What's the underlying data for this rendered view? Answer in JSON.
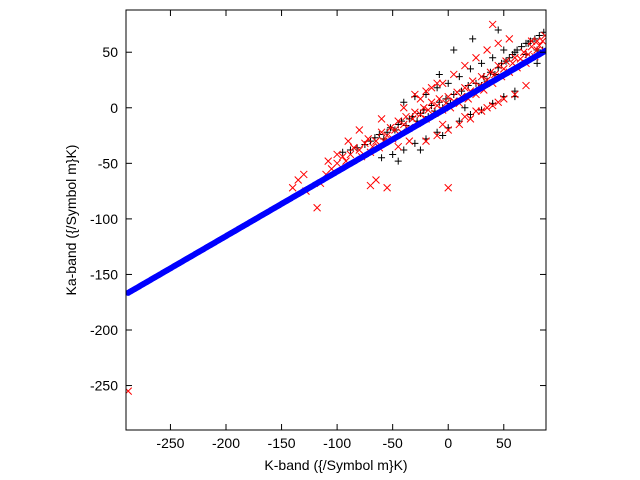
{
  "chart_data": {
    "type": "scatter",
    "title": "",
    "xlabel": "K-band ({/Symbol m}K)",
    "ylabel": "Ka-band ({/Symbol m}K)",
    "xlim": [
      -290,
      88
    ],
    "ylim": [
      -290,
      88
    ],
    "grid": false,
    "legend": "none",
    "xticks": [
      -250,
      -200,
      -150,
      -100,
      -50,
      0,
      50
    ],
    "yticks": [
      -250,
      -200,
      -150,
      -100,
      -50,
      0,
      50
    ],
    "xtick_labels": [
      "-250",
      "-200",
      "-150",
      "-100",
      "-50",
      "0",
      "50"
    ],
    "ytick_labels": [
      "-250",
      "-200",
      "-150",
      "-100",
      "-50",
      "0",
      "50"
    ],
    "series": [
      {
        "marker": "plus",
        "color": "#000000",
        "points": [
          [
            -95,
            -40
          ],
          [
            -88,
            -38
          ],
          [
            -82,
            -36
          ],
          [
            -75,
            -33
          ],
          [
            -70,
            -30
          ],
          [
            -66,
            -27
          ],
          [
            -62,
            -24
          ],
          [
            -58,
            -28
          ],
          [
            -55,
            -22
          ],
          [
            -52,
            -18
          ],
          [
            -48,
            -20
          ],
          [
            -45,
            -15
          ],
          [
            -42,
            -12
          ],
          [
            -38,
            -16
          ],
          [
            -35,
            -10
          ],
          [
            -32,
            -8
          ],
          [
            -28,
            -12
          ],
          [
            -25,
            -5
          ],
          [
            -22,
            -2
          ],
          [
            -18,
            -8
          ],
          [
            -15,
            2
          ],
          [
            -12,
            -3
          ],
          [
            -8,
            5
          ],
          [
            -5,
            0
          ],
          [
            -2,
            8
          ],
          [
            2,
            4
          ],
          [
            5,
            12
          ],
          [
            8,
            6
          ],
          [
            12,
            15
          ],
          [
            15,
            10
          ],
          [
            18,
            20
          ],
          [
            22,
            14
          ],
          [
            25,
            22
          ],
          [
            28,
            18
          ],
          [
            32,
            28
          ],
          [
            35,
            24
          ],
          [
            38,
            32
          ],
          [
            42,
            30
          ],
          [
            45,
            36
          ],
          [
            48,
            40
          ],
          [
            52,
            42
          ],
          [
            55,
            45
          ],
          [
            58,
            48
          ],
          [
            62,
            52
          ],
          [
            66,
            55
          ],
          [
            70,
            58
          ],
          [
            74,
            60
          ],
          [
            78,
            62
          ],
          [
            82,
            65
          ],
          [
            86,
            68
          ],
          [
            -40,
            5
          ],
          [
            -30,
            10
          ],
          [
            -20,
            12
          ],
          [
            -10,
            18
          ],
          [
            0,
            22
          ],
          [
            10,
            28
          ],
          [
            20,
            35
          ],
          [
            30,
            40
          ],
          [
            40,
            45
          ],
          [
            50,
            52
          ],
          [
            60,
            50
          ],
          [
            70,
            48
          ],
          [
            80,
            52
          ],
          [
            -60,
            -45
          ],
          [
            -50,
            -42
          ],
          [
            -40,
            -38
          ],
          [
            -30,
            -32
          ],
          [
            -20,
            -28
          ],
          [
            -10,
            -22
          ],
          [
            0,
            -18
          ],
          [
            10,
            -12
          ],
          [
            20,
            -6
          ],
          [
            30,
            -2
          ],
          [
            40,
            4
          ],
          [
            50,
            10
          ],
          [
            60,
            15
          ],
          [
            5,
            52
          ],
          [
            22,
            62
          ],
          [
            45,
            70
          ],
          [
            72,
            58
          ],
          [
            85,
            52
          ],
          [
            80,
            40
          ],
          [
            60,
            10
          ],
          [
            -5,
            -25
          ],
          [
            -25,
            -38
          ],
          [
            -45,
            -48
          ],
          [
            30,
            20
          ],
          [
            15,
            0
          ],
          [
            -8,
            30
          ]
        ]
      },
      {
        "marker": "cross",
        "color": "#ff0000",
        "points": [
          [
            -288,
            -255
          ],
          [
            -118,
            -90
          ],
          [
            -115,
            -68
          ],
          [
            -110,
            -60
          ],
          [
            -105,
            -55
          ],
          [
            -140,
            -72
          ],
          [
            -135,
            -65
          ],
          [
            -130,
            -60
          ],
          [
            -128,
            -75
          ],
          [
            -100,
            -50
          ],
          [
            -95,
            -44
          ],
          [
            -92,
            -48
          ],
          [
            -88,
            -42
          ],
          [
            -85,
            -36
          ],
          [
            -80,
            -38
          ],
          [
            -78,
            -44
          ],
          [
            -75,
            -32
          ],
          [
            -72,
            -28
          ],
          [
            -70,
            -40
          ],
          [
            -68,
            -35
          ],
          [
            -65,
            -30
          ],
          [
            -62,
            -36
          ],
          [
            -60,
            -22
          ],
          [
            -58,
            -30
          ],
          [
            -55,
            -25
          ],
          [
            -52,
            -18
          ],
          [
            -50,
            -28
          ],
          [
            -48,
            -20
          ],
          [
            -45,
            -12
          ],
          [
            -42,
            -22
          ],
          [
            -40,
            -15
          ],
          [
            -38,
            -8
          ],
          [
            -35,
            -18
          ],
          [
            -32,
            -10
          ],
          [
            -30,
            -4
          ],
          [
            -28,
            -14
          ],
          [
            -25,
            -6
          ],
          [
            -22,
            0
          ],
          [
            -20,
            -10
          ],
          [
            -18,
            -2
          ],
          [
            -15,
            5
          ],
          [
            -12,
            -5
          ],
          [
            -10,
            2
          ],
          [
            -8,
            8
          ],
          [
            -5,
            -2
          ],
          [
            -2,
            4
          ],
          [
            0,
            10
          ],
          [
            2,
            0
          ],
          [
            5,
            6
          ],
          [
            8,
            14
          ],
          [
            10,
            4
          ],
          [
            12,
            10
          ],
          [
            15,
            18
          ],
          [
            18,
            8
          ],
          [
            20,
            15
          ],
          [
            22,
            24
          ],
          [
            25,
            12
          ],
          [
            28,
            20
          ],
          [
            30,
            28
          ],
          [
            32,
            16
          ],
          [
            35,
            25
          ],
          [
            38,
            32
          ],
          [
            40,
            22
          ],
          [
            42,
            30
          ],
          [
            45,
            38
          ],
          [
            48,
            28
          ],
          [
            50,
            35
          ],
          [
            52,
            42
          ],
          [
            55,
            32
          ],
          [
            58,
            40
          ],
          [
            60,
            45
          ],
          [
            62,
            36
          ],
          [
            65,
            44
          ],
          [
            68,
            50
          ],
          [
            70,
            40
          ],
          [
            72,
            48
          ],
          [
            75,
            55
          ],
          [
            78,
            46
          ],
          [
            80,
            52
          ],
          [
            82,
            56
          ],
          [
            85,
            60
          ],
          [
            87,
            65
          ],
          [
            -70,
            -70
          ],
          [
            -65,
            -65
          ],
          [
            -55,
            -72
          ],
          [
            0,
            -72
          ],
          [
            -25,
            8
          ],
          [
            -15,
            18
          ],
          [
            -5,
            22
          ],
          [
            5,
            30
          ],
          [
            15,
            38
          ],
          [
            25,
            45
          ],
          [
            35,
            52
          ],
          [
            45,
            58
          ],
          [
            55,
            62
          ],
          [
            40,
            75
          ],
          [
            75,
            60
          ],
          [
            80,
            60
          ],
          [
            -20,
            -30
          ],
          [
            -10,
            -25
          ],
          [
            0,
            -20
          ],
          [
            10,
            -15
          ],
          [
            20,
            -10
          ],
          [
            30,
            -3
          ],
          [
            40,
            2
          ],
          [
            50,
            8
          ],
          [
            60,
            12
          ],
          [
            70,
            20
          ],
          [
            -80,
            -20
          ],
          [
            -60,
            -10
          ],
          [
            -40,
            0
          ],
          [
            -30,
            12
          ],
          [
            -20,
            15
          ],
          [
            -10,
            22
          ],
          [
            25,
            -3
          ],
          [
            35,
            0
          ],
          [
            45,
            5
          ],
          [
            -5,
            -15
          ],
          [
            15,
            -8
          ],
          [
            -35,
            -30
          ],
          [
            -45,
            -35
          ],
          [
            -90,
            -30
          ],
          [
            -100,
            -42
          ],
          [
            -108,
            -48
          ]
        ]
      },
      {
        "marker": "dot",
        "color": "#0000ff",
        "line": {
          "x_start": -288,
          "x_end": 88,
          "slope": 0.58,
          "intercept": 0.5
        }
      }
    ]
  }
}
